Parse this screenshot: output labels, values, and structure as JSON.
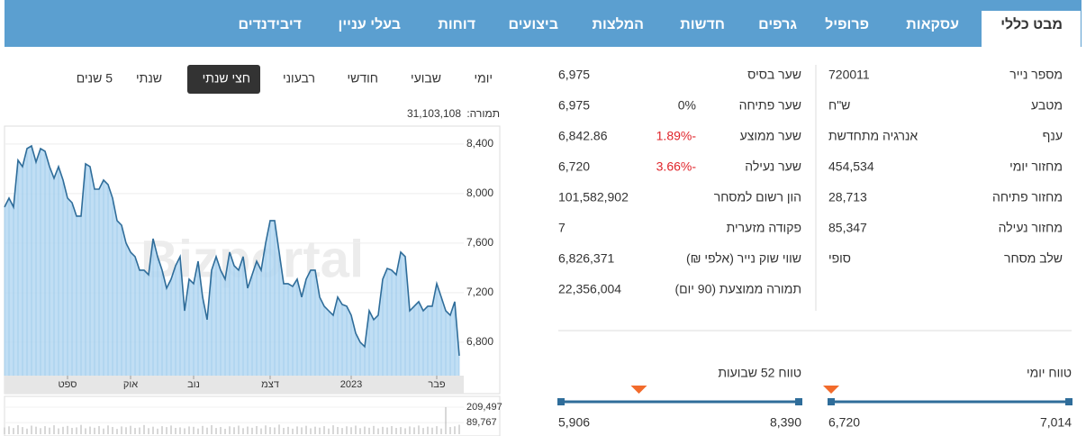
{
  "tabs": [
    "מבט כללי",
    "עסקאות",
    "פרופיל",
    "גרפים",
    "חדשות",
    "המלצות",
    "ביצועים",
    "דוחות",
    "בעלי עניין",
    "דיבידנדים"
  ],
  "active_tab": 0,
  "periods": [
    "יומי",
    "שבועי",
    "חודשי",
    "רבעוני",
    "חצי שנתי",
    "שנתי",
    "5 שנים"
  ],
  "active_period": 4,
  "turnover": {
    "label": "תמורה:",
    "value": "31,103,108"
  },
  "chart_data": {
    "type": "area",
    "watermark": "Bizportal",
    "color": "#2f6d9a",
    "fill": "#b5d8f2",
    "values": [
      7891,
      7964,
      7891,
      8269,
      8218,
      8364,
      8385,
      8255,
      8364,
      8342,
      8218,
      8124,
      8218,
      8109,
      7964,
      7927,
      7818,
      7818,
      8240,
      8218,
      8036,
      8036,
      8109,
      8073,
      7964,
      7782,
      7745,
      7600,
      7527,
      7491,
      7382,
      7382,
      7345,
      7636,
      7491,
      7382,
      7236,
      7309,
      7418,
      7491,
      7054,
      7309,
      7273,
      7454,
      7164,
      6982,
      7382,
      7491,
      7382,
      7309,
      7527,
      7418,
      7382,
      7491,
      7236,
      7345,
      7454,
      7382,
      7600,
      7782,
      7782,
      7527,
      7273,
      7273,
      7251,
      7309,
      7164,
      7309,
      7382,
      7382,
      7164,
      7091,
      7054,
      7018,
      7164,
      7105,
      7091,
      7018,
      6873,
      6800,
      6764,
      7054,
      6982,
      7018,
      7309,
      7396,
      7382,
      7345,
      7527,
      7491,
      7054,
      7091,
      7127,
      7054,
      7091,
      7091,
      7273,
      7164,
      7054,
      7018,
      7127,
      6691
    ],
    "xlim": [
      0,
      101
    ],
    "xticks": [
      {
        "value": 14,
        "label": "ספט"
      },
      {
        "value": 28,
        "label": "אוק"
      },
      {
        "value": 42,
        "label": "נוב"
      },
      {
        "value": 59,
        "label": "דצמ"
      },
      {
        "value": 77,
        "label": "2023"
      },
      {
        "value": 96,
        "label": "פבר"
      }
    ],
    "ylim": [
      6530,
      8545
    ],
    "yticks": [
      {
        "value": 6800,
        "label": "6,800"
      },
      {
        "value": 7200,
        "label": "7,200"
      },
      {
        "value": 7600,
        "label": "7,600"
      },
      {
        "value": 8000,
        "label": "8,000"
      },
      {
        "value": 8400,
        "label": "8,400"
      }
    ],
    "grid": true,
    "volume": {
      "color": "#bdbdbd",
      "values": [
        52000,
        61000,
        48000,
        70000,
        55000,
        43000,
        66000,
        58000,
        47000,
        62000,
        51000,
        69000,
        45000,
        57000,
        64000,
        49000,
        53000,
        72000,
        46000,
        59000,
        50000,
        63000,
        44000,
        68000,
        56000,
        41000,
        60000,
        54000,
        65000,
        48000,
        52000,
        71000,
        47000,
        58000,
        43000,
        62000,
        55000,
        67000,
        49000,
        53000,
        46000,
        60000,
        57000,
        44000,
        64000,
        51000,
        70000,
        48000,
        56000,
        42000,
        61000,
        54000,
        66000,
        47000,
        59000,
        50000,
        63000,
        45000,
        68000,
        55000,
        52000,
        74000,
        49000,
        57000,
        43000,
        60000,
        53000,
        65000,
        46000,
        58000,
        51000,
        62000,
        44000,
        69000,
        56000,
        48000,
        61000,
        54000,
        66000,
        47000,
        59000,
        50000,
        64000,
        45000,
        57000,
        52000,
        63000,
        49000,
        55000,
        46000,
        60000,
        53000,
        67000,
        48000,
        58000,
        51000,
        62000,
        44000,
        209497,
        56000,
        61000,
        73000
      ],
      "ylim": [
        0,
        293000
      ],
      "yticks": [
        {
          "value": 89767,
          "label": "89,767"
        },
        {
          "value": 209497,
          "label": "209,497"
        }
      ]
    }
  },
  "info_right": [
    {
      "label": "מספר נייר",
      "value": "720011"
    },
    {
      "label": "מטבע",
      "value": "ש\"ח"
    },
    {
      "label": "ענף",
      "value": "אנרגיה מתחדשת"
    },
    {
      "label": "מחזור יומי",
      "value": "454,534"
    },
    {
      "label": "מחזור פתיחה",
      "value": "28,713"
    },
    {
      "label": "מחזור נעילה",
      "value": "85,347"
    },
    {
      "label": "שלב מסחר",
      "value": "סופי"
    }
  ],
  "info_middle": [
    {
      "label": "שער בסיס",
      "value": "6,975"
    },
    {
      "label": "שער פתיחה",
      "value": "6,975",
      "change": "0%"
    },
    {
      "label": "שער ממוצע",
      "value": "6,842.86",
      "change": "1.89%-"
    },
    {
      "label": "שער נעילה",
      "value": "6,720",
      "change": "3.66%-"
    },
    {
      "label": "הון רשום למסחר",
      "value": "101,582,902"
    },
    {
      "label": "פקודה מזערית",
      "value": "7"
    },
    {
      "label": "שווי שוק נייר (אלפי ₪)",
      "value": "6,826,371"
    },
    {
      "label": "תמורה ממוצעת (90 יום)",
      "value": "22,356,004"
    }
  ],
  "ranges": [
    {
      "title": "טווח 52 שבועות",
      "low": {
        "value": 5906,
        "label": "5,906"
      },
      "high": {
        "value": 8390,
        "label": "8,390"
      },
      "marker": 6720
    },
    {
      "title": "טווח יומי",
      "low": {
        "value": 6720,
        "label": "6,720"
      },
      "high": {
        "value": 7014,
        "label": "7,014"
      },
      "marker": 6720
    }
  ]
}
